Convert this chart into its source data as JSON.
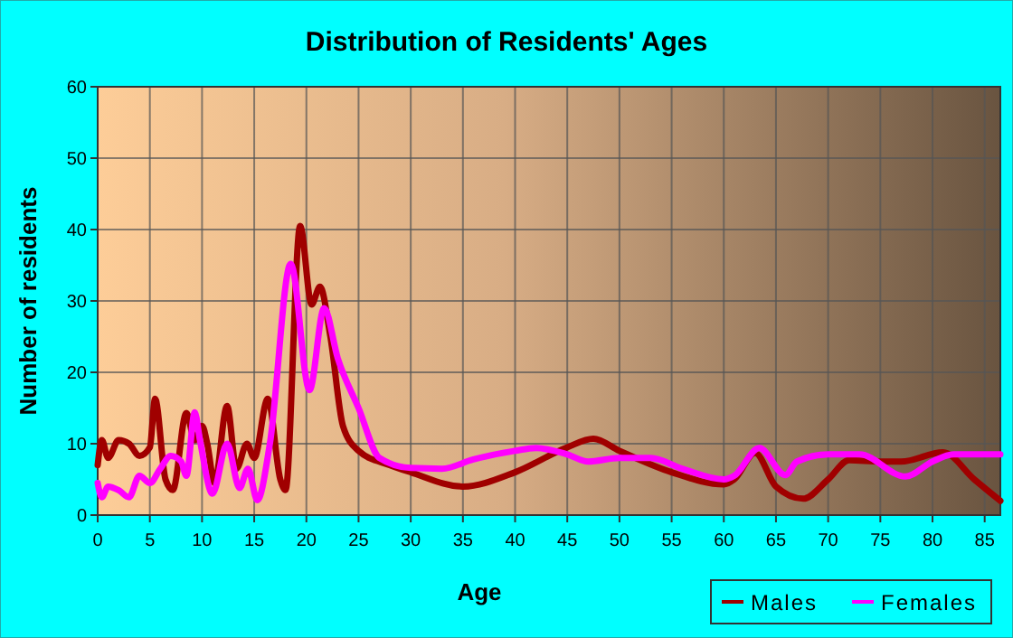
{
  "chart_data": {
    "type": "line",
    "title": "Distribution of Residents' Ages",
    "xlabel": "Age",
    "ylabel": "Number of residents",
    "xlim": [
      0,
      86.5
    ],
    "ylim": [
      0,
      60
    ],
    "xticks": [
      0,
      5,
      10,
      15,
      20,
      25,
      30,
      35,
      40,
      45,
      50,
      55,
      60,
      65,
      70,
      75,
      80,
      85
    ],
    "yticks": [
      0,
      10,
      20,
      30,
      40,
      50,
      60
    ],
    "grid": true,
    "legend": "bottom right",
    "line_style": "solid",
    "marker": "none",
    "series": [
      {
        "name": "Males",
        "color": "#a00000",
        "x": [
          0,
          0.4,
          1,
          2,
          3,
          4,
          5,
          5.5,
          6.5,
          7.2,
          8.5,
          9.3,
          10,
          10.5,
          11.2,
          12.4,
          13.3,
          14.3,
          15,
          16.3,
          17.5,
          18,
          19.4,
          20.5,
          21.3,
          22.3,
          23.5,
          25,
          28,
          30,
          35,
          40,
          45,
          47.5,
          50,
          55,
          60,
          61,
          63,
          65,
          67.6,
          70,
          72,
          75,
          77,
          81,
          84,
          86.5
        ],
        "values": [
          7,
          10.5,
          8,
          10.5,
          10,
          8.3,
          9.5,
          16.3,
          5,
          3.5,
          14.3,
          10.5,
          12.5,
          10,
          4.5,
          15.3,
          6.5,
          10,
          8,
          16.3,
          5,
          3.5,
          40.5,
          29.5,
          32,
          25,
          12.5,
          9,
          7,
          6,
          4,
          6,
          9.5,
          10.7,
          9,
          6,
          4.3,
          5,
          8.7,
          4,
          2.3,
          5,
          7.7,
          7.5,
          7.5,
          8.8,
          5,
          2
        ]
      },
      {
        "name": "Females",
        "color": "#ff00ff",
        "x": [
          0,
          0.4,
          1,
          2,
          3,
          4,
          5,
          6,
          7,
          8,
          8.5,
          9.3,
          9.8,
          11,
          12.4,
          13.6,
          14.4,
          15.3,
          16.5,
          18.5,
          20.3,
          21.7,
          23,
          25,
          27,
          30,
          33,
          36,
          40,
          42,
          45,
          47,
          50,
          53,
          56,
          60,
          61,
          63.4,
          65.9,
          67,
          70,
          73,
          77.4,
          80,
          82,
          86.5
        ],
        "values": [
          4.5,
          2.5,
          4,
          3.5,
          2.5,
          5.5,
          4.5,
          6.5,
          8.3,
          7.5,
          5.5,
          14.4,
          10.5,
          3,
          10,
          3.8,
          6.5,
          2.1,
          10,
          35.2,
          17.5,
          29,
          22,
          15,
          8,
          6.6,
          6.5,
          7.8,
          9,
          9.4,
          8.5,
          7.5,
          8,
          8,
          6.5,
          5,
          5.5,
          9.4,
          5.6,
          7.5,
          8.5,
          8.5,
          5.4,
          7.5,
          8.5,
          8.5
        ]
      }
    ]
  }
}
